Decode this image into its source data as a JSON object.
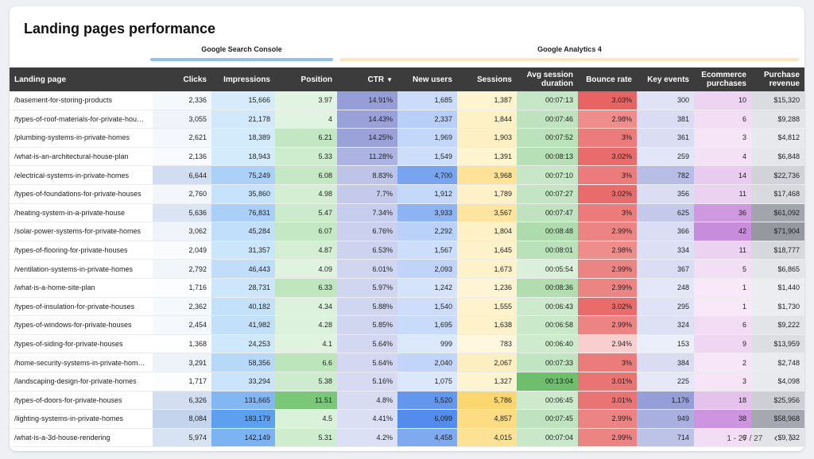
{
  "title": "Landing pages performance",
  "groups": {
    "gsc": {
      "label": "Google Search Console",
      "color": "#90c2ee"
    },
    "ga4": {
      "label": "Google Analytics 4",
      "color": "#fbe8b8"
    }
  },
  "columns": [
    "Landing page",
    "Clicks",
    "Impressions",
    "Position",
    "CTR",
    "New users",
    "Sessions",
    "Avg session duration",
    "Bounce rate",
    "Key events",
    "Ecommerce purchases",
    "Purchase revenue"
  ],
  "sort_indicator": "▼",
  "rows": [
    [
      "/basement-for-storing-products",
      "2,336",
      "15,666",
      "3.97",
      "14.91%",
      "1,685",
      "1,387",
      "00:07:13",
      "3.03%",
      "300",
      "10",
      "$15,320"
    ],
    [
      "/types-of-roof-materials-for-private-hou…",
      "3,055",
      "21,178",
      "4",
      "14.43%",
      "2,337",
      "1,844",
      "00:07:46",
      "2.98%",
      "381",
      "6",
      "$9,288"
    ],
    [
      "/plumbing-systems-in-private-homes",
      "2,621",
      "18,389",
      "6.21",
      "14.25%",
      "1,969",
      "1,903",
      "00:07:52",
      "3%",
      "361",
      "3",
      "$4,812"
    ],
    [
      "/what-is-an-architectural-house-plan",
      "2,136",
      "18,943",
      "5.33",
      "11.28%",
      "1,549",
      "1,391",
      "00:08:13",
      "3.02%",
      "259",
      "4",
      "$6,848"
    ],
    [
      "/electrical-systems-in-private-homes",
      "6,644",
      "75,249",
      "6.08",
      "8.83%",
      "4,700",
      "3,968",
      "00:07:10",
      "3%",
      "782",
      "14",
      "$22,736"
    ],
    [
      "/types-of-foundations-for-private-houses",
      "2,760",
      "35,860",
      "4.98",
      "7.7%",
      "1,912",
      "1,789",
      "00:07:27",
      "3.02%",
      "356",
      "11",
      "$17,468"
    ],
    [
      "/heating-system-in-a-private-house",
      "5,636",
      "76,831",
      "5.47",
      "7.34%",
      "3,933",
      "3,567",
      "00:07:47",
      "3%",
      "625",
      "36",
      "$61,092"
    ],
    [
      "/solar-power-systems-for-private-homes",
      "3,062",
      "45,284",
      "6.07",
      "6.76%",
      "2,292",
      "1,804",
      "00:08:48",
      "2.99%",
      "366",
      "42",
      "$71,904"
    ],
    [
      "/types-of-flooring-for-private-houses",
      "2,049",
      "31,357",
      "4.87",
      "6.53%",
      "1,567",
      "1,645",
      "00:08:01",
      "2.98%",
      "334",
      "11",
      "$18,777"
    ],
    [
      "/ventilation-systems-in-private-homes",
      "2,792",
      "46,443",
      "4.09",
      "6.01%",
      "2,093",
      "1,673",
      "00:05:54",
      "2.99%",
      "367",
      "5",
      "$6,865"
    ],
    [
      "/what-is-a-home-site-plan",
      "1,716",
      "28,731",
      "6.33",
      "5.97%",
      "1,242",
      "1,236",
      "00:08:36",
      "2.99%",
      "248",
      "1",
      "$1,440"
    ],
    [
      "/types-of-insulation-for-private-houses",
      "2,362",
      "40,182",
      "4.34",
      "5.88%",
      "1,540",
      "1,555",
      "00:06:43",
      "3.02%",
      "295",
      "1",
      "$1,730"
    ],
    [
      "/types-of-windows-for-private-houses",
      "2,454",
      "41,982",
      "4.28",
      "5.85%",
      "1,695",
      "1,638",
      "00:06:58",
      "2.99%",
      "324",
      "6",
      "$9,222"
    ],
    [
      "/types-of-siding-for-private-houses",
      "1,368",
      "24,253",
      "4.1",
      "5.64%",
      "999",
      "783",
      "00:06:40",
      "2.94%",
      "153",
      "9",
      "$13,959"
    ],
    [
      "/home-security-systems-in-private-hom…",
      "3,291",
      "58,356",
      "6.6",
      "5.64%",
      "2,040",
      "2,067",
      "00:07:33",
      "3%",
      "384",
      "2",
      "$2,748"
    ],
    [
      "/landscaping-design-for-private-homes",
      "1,717",
      "33,294",
      "5.38",
      "5.16%",
      "1,075",
      "1,327",
      "00:13:04",
      "3.01%",
      "225",
      "3",
      "$4,098"
    ],
    [
      "/types-of-doors-for-private-houses",
      "6,326",
      "131,665",
      "11.51",
      "4.8%",
      "5,520",
      "5,786",
      "00:06:45",
      "3.01%",
      "1,176",
      "18",
      "$25,956"
    ],
    [
      "/lighting-systems-in-private-homes",
      "8,084",
      "183,179",
      "4.5",
      "4.41%",
      "6,099",
      "4,857",
      "00:07:45",
      "2.99%",
      "949",
      "38",
      "$58,968"
    ],
    [
      "/what-is-a-3d-house-rendering",
      "5,974",
      "142,149",
      "5.31",
      "4.2%",
      "4,458",
      "4,015",
      "00:07:04",
      "2.99%",
      "714",
      "6",
      "$9,732"
    ]
  ],
  "pagination": {
    "label": "1 - 27 / 27"
  }
}
